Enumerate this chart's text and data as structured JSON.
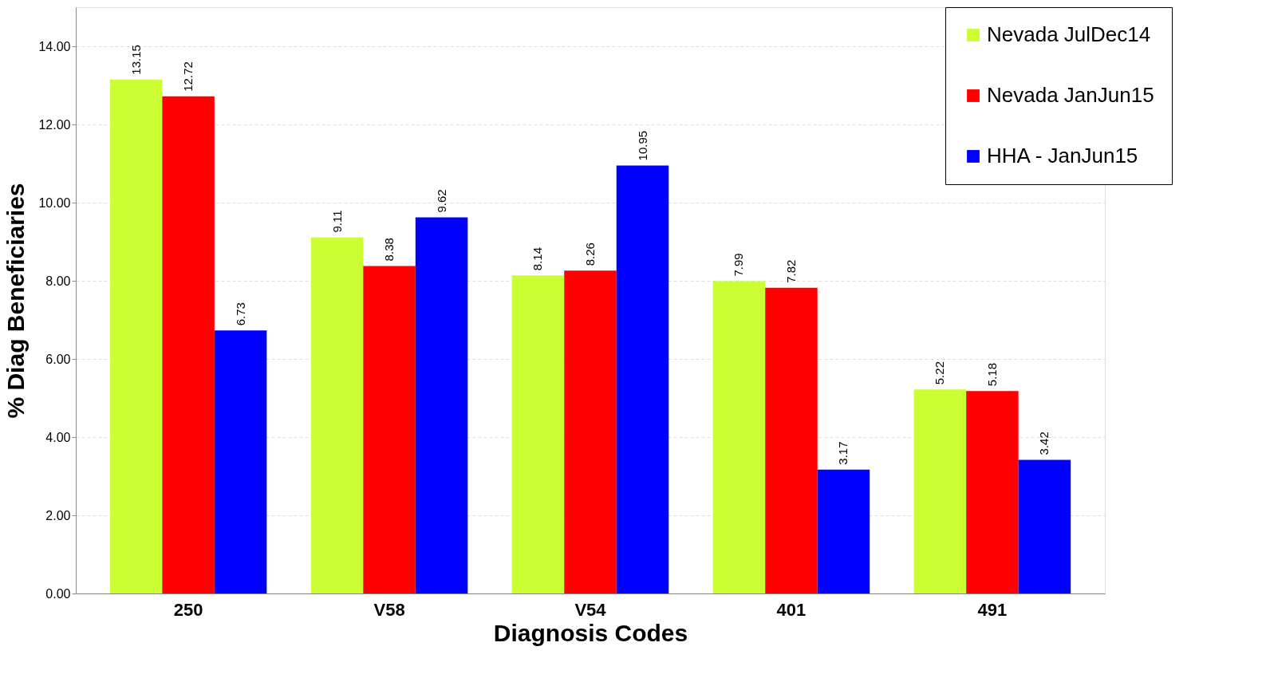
{
  "chart_data": {
    "type": "bar",
    "xlabel": "Diagnosis Codes",
    "ylabel": "% Diag Beneficiaries",
    "categories": [
      "250",
      "V58",
      "V54",
      "401",
      "491"
    ],
    "series": [
      {
        "name": "Nevada JulDec14",
        "color": "#ccff33",
        "values": [
          13.15,
          9.11,
          8.14,
          7.99,
          5.22
        ]
      },
      {
        "name": "Nevada JanJun15",
        "color": "#ff0000",
        "values": [
          12.72,
          8.38,
          8.26,
          7.82,
          5.18
        ]
      },
      {
        "name": "HHA - JanJun15",
        "color": "#0000ff",
        "values": [
          6.73,
          9.62,
          10.95,
          3.17,
          3.42
        ]
      }
    ],
    "ylim": [
      0,
      15
    ],
    "yticks": [
      {
        "value": 0,
        "label": "0.00"
      },
      {
        "value": 2,
        "label": "2.00"
      },
      {
        "value": 4,
        "label": "4.00"
      },
      {
        "value": 6,
        "label": "6.00"
      },
      {
        "value": 8,
        "label": "8.00"
      },
      {
        "value": 10,
        "label": "10.00"
      },
      {
        "value": 12,
        "label": "12.00"
      },
      {
        "value": 14,
        "label": "14.00"
      }
    ],
    "grid": "y",
    "legend": "top right",
    "data_labels": true
  }
}
